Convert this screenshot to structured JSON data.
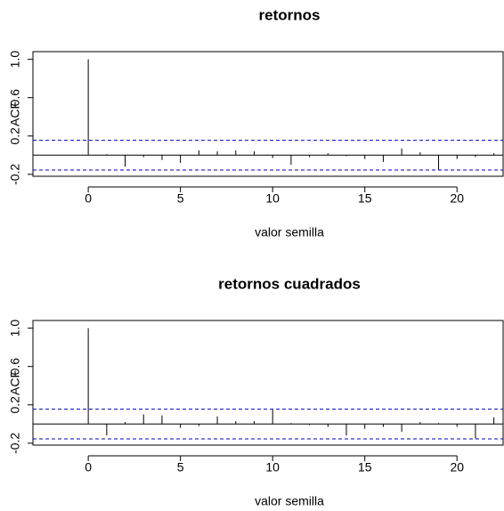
{
  "chart_data": [
    {
      "type": "acf",
      "title": "retornos",
      "xlabel": "valor semilla",
      "ylabel": "ACF",
      "x": [
        0,
        1,
        2,
        3,
        4,
        5,
        6,
        7,
        8,
        9,
        10,
        11,
        12,
        13,
        14,
        15,
        16,
        17,
        18,
        19,
        20,
        21,
        22
      ],
      "values": [
        1.0,
        0.01,
        -0.12,
        -0.02,
        -0.05,
        -0.08,
        0.05,
        0.04,
        0.05,
        0.04,
        -0.03,
        -0.1,
        -0.02,
        0.02,
        -0.01,
        -0.04,
        -0.07,
        0.07,
        0.03,
        -0.15,
        -0.04,
        -0.02,
        0.02
      ],
      "color": "#000000",
      "conf_lines": [
        0.155,
        -0.155
      ],
      "conf_color": "#0000cc",
      "xlim": [
        -3,
        22.5
      ],
      "ylim": [
        -0.22,
        1.08
      ],
      "xticks": [
        0,
        5,
        10,
        15,
        20
      ],
      "yticks": [
        -0.2,
        0.2,
        0.6,
        {
          "value": 1,
          "label": "1.0"
        }
      ]
    },
    {
      "type": "acf",
      "title": "retornos cuadrados",
      "xlabel": "valor semilla",
      "ylabel": "ACF",
      "x": [
        0,
        1,
        2,
        3,
        4,
        5,
        6,
        7,
        8,
        9,
        10,
        11,
        12,
        13,
        14,
        15,
        16,
        17,
        18,
        19,
        20,
        21,
        22
      ],
      "values": [
        1.0,
        -0.12,
        0.02,
        0.1,
        0.09,
        -0.04,
        -0.02,
        0.08,
        0.03,
        0.03,
        0.15,
        0.01,
        -0.01,
        -0.03,
        -0.12,
        -0.05,
        -0.03,
        -0.08,
        0.02,
        0.01,
        -0.03,
        -0.15,
        0.07
      ],
      "color": "#000000",
      "conf_lines": [
        0.155,
        -0.155
      ],
      "conf_color": "#0000cc",
      "xlim": [
        -3,
        22.5
      ],
      "ylim": [
        -0.22,
        1.08
      ],
      "xticks": [
        0,
        5,
        10,
        15,
        20
      ],
      "yticks": [
        -0.2,
        0.2,
        0.6,
        {
          "value": 1,
          "label": "1.0"
        }
      ]
    }
  ]
}
